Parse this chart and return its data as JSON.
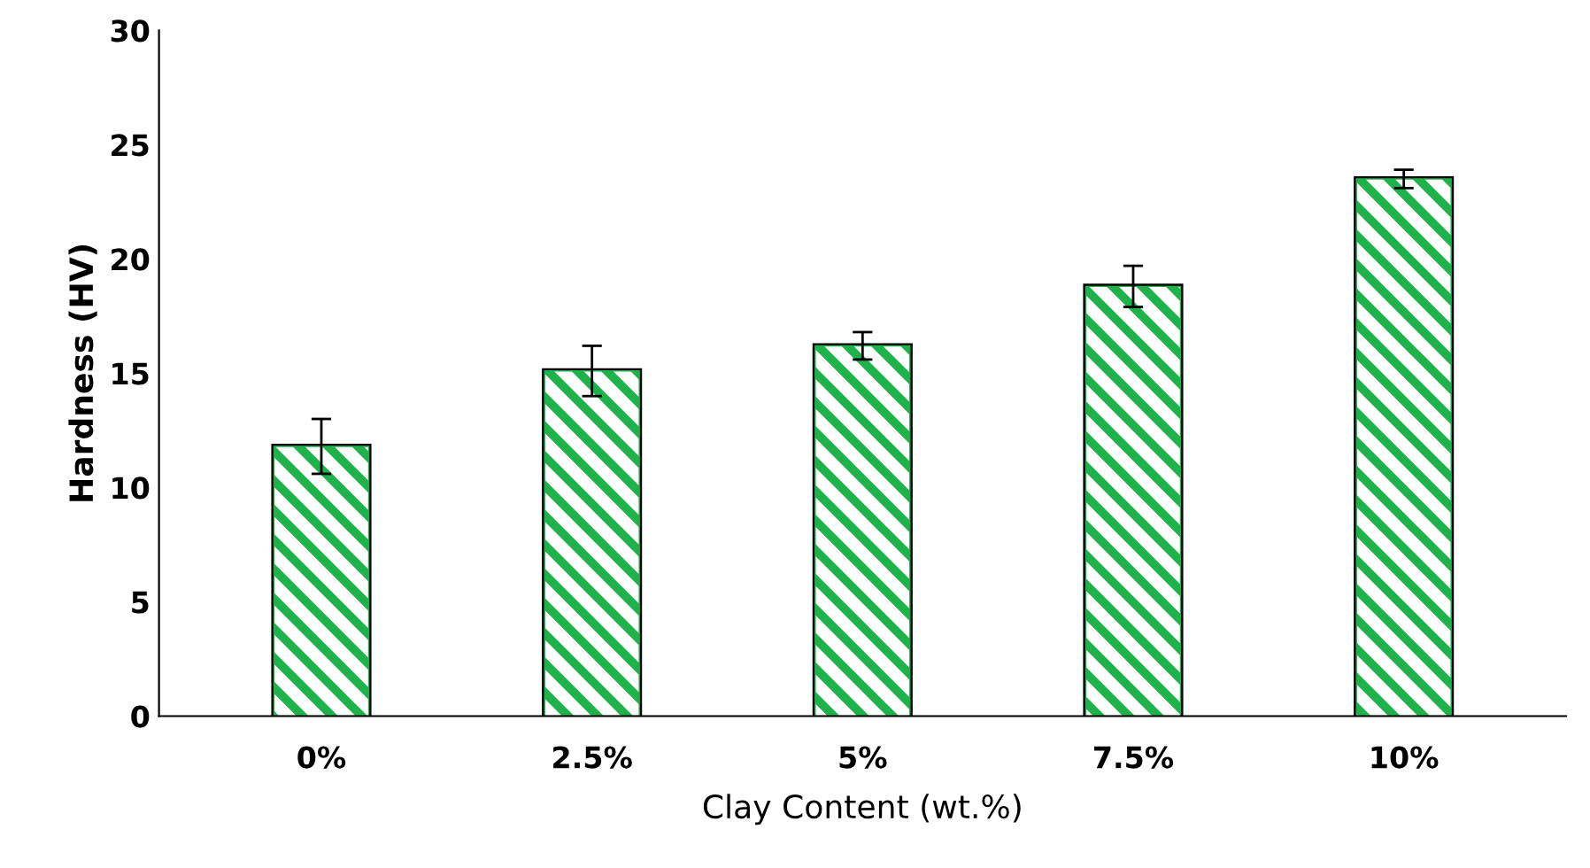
{
  "chart_data": {
    "type": "bar",
    "xlabel": "Clay Content (wt.%)",
    "ylabel": "Hardness (HV)",
    "categories": [
      "0%",
      "2.5%",
      "5%",
      "7.5%",
      "10%"
    ],
    "values": [
      11.8,
      15.1,
      16.2,
      18.8,
      23.5
    ],
    "errors": [
      1.2,
      1.1,
      0.6,
      0.9,
      0.4
    ],
    "color": "#1fb24a",
    "ylim": [
      0,
      30
    ],
    "yticks": [
      0,
      5,
      10,
      15,
      20,
      25,
      30
    ],
    "grid": false,
    "legend": false
  }
}
